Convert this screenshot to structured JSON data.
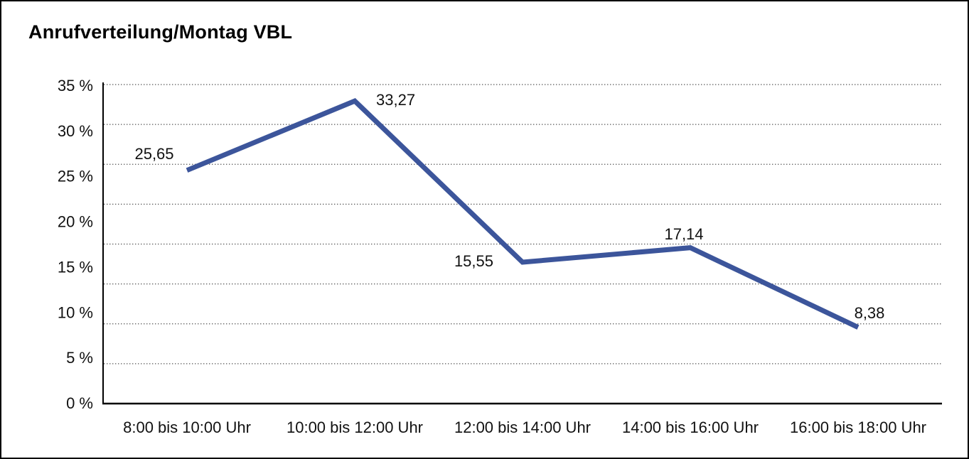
{
  "window": {
    "title": "Anrufverteilung/Montag VBL"
  },
  "chart_data": {
    "type": "line",
    "title": "Anrufverteilung/Montag VBL",
    "categories": [
      "8:00 bis 10:00 Uhr",
      "10:00 bis 12:00 Uhr",
      "12:00 bis 14:00 Uhr",
      "14:00 bis 16:00 Uhr",
      "16:00 bis 18:00 Uhr"
    ],
    "values": [
      25.65,
      33.27,
      15.55,
      17.14,
      8.38
    ],
    "value_labels": [
      "25,65",
      "33,27",
      "15,55",
      "17,14",
      "8,38"
    ],
    "y_tick_labels": [
      "35 %",
      "30 %",
      "25 %",
      "20 %",
      "15 %",
      "10 %",
      "5 %",
      "0 %"
    ],
    "ylim": [
      0,
      35
    ],
    "y_major_step": 5,
    "xlabel": "",
    "ylabel": "",
    "legend": "none",
    "grid": "horizontal-dotted",
    "line_color": "#3C559B",
    "axis_color": "#000000",
    "gridline_color": "#555555",
    "text_color": "#111111"
  }
}
